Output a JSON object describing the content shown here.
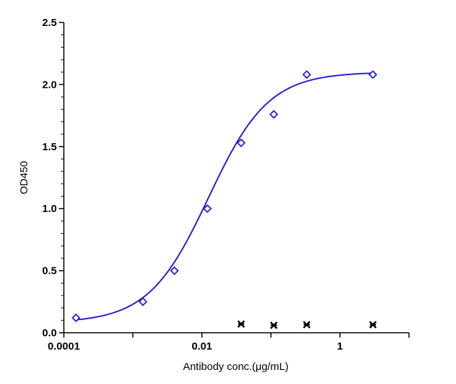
{
  "chart_data": {
    "type": "scatter",
    "xlabel": "Antibody conc.(μg/mL)",
    "ylabel": "OD450",
    "x_scale": "log10",
    "xlim": [
      0.0001,
      10
    ],
    "ylim": [
      0,
      2.5
    ],
    "x_ticks": [
      {
        "value": 0.0001,
        "label": "0.0001"
      },
      {
        "value": 0.01,
        "label": "0.01"
      },
      {
        "value": 1,
        "label": "1"
      }
    ],
    "y_ticks": [
      {
        "value": 0.0,
        "label": "0.0"
      },
      {
        "value": 0.5,
        "label": "0.5"
      },
      {
        "value": 1.0,
        "label": "1.0"
      },
      {
        "value": 1.5,
        "label": "1.5"
      },
      {
        "value": 2.0,
        "label": "2.0"
      },
      {
        "value": 2.5,
        "label": "2.5"
      }
    ],
    "grid": false,
    "series": [
      {
        "marker": "diamond-open",
        "color": "#1f1fd6",
        "fit": "four-parameter-logistic",
        "x": [
          0.00015,
          0.0014,
          0.004,
          0.012,
          0.037,
          0.11,
          0.33,
          3.0
        ],
        "y": [
          0.12,
          0.25,
          0.5,
          1.0,
          1.53,
          1.76,
          2.08,
          2.08
        ]
      },
      {
        "marker": "x-star",
        "color": "#000000",
        "x": [
          0.037,
          0.11,
          0.33,
          3.0
        ],
        "y": [
          0.07,
          0.06,
          0.065,
          0.065
        ]
      }
    ]
  }
}
